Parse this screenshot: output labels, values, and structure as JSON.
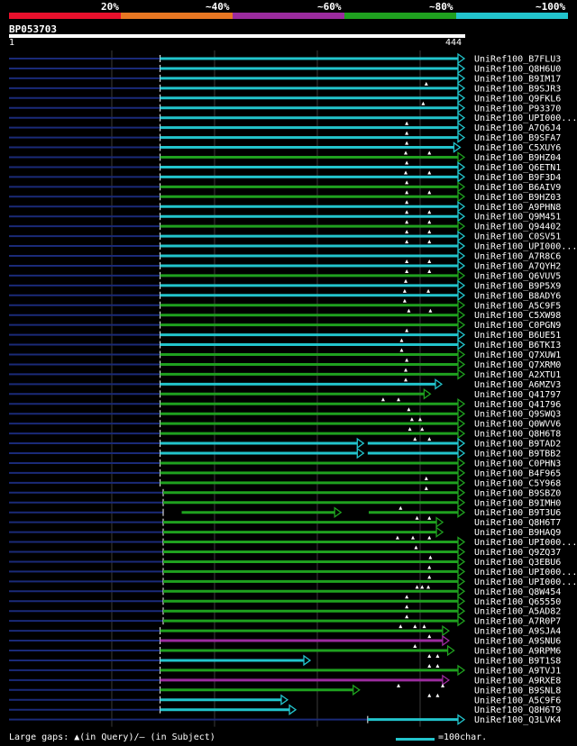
{
  "legend": {
    "labels": [
      "20%",
      "~40%",
      "~60%",
      "~80%",
      "~100%"
    ],
    "colors": [
      "#e8102c",
      "#e87722",
      "#9b2b9e",
      "#1fa01f",
      "#22c4cc"
    ]
  },
  "query": {
    "id": "BP053703",
    "start": "1",
    "end": "444",
    "length": 444
  },
  "hits": [
    {
      "name": "UniRef100_B7FLU3",
      "color": "#22c4cc",
      "start": 148,
      "end": 444,
      "marks": []
    },
    {
      "name": "UniRef100_Q8H6U0",
      "color": "#22c4cc",
      "start": 148,
      "end": 444,
      "marks": []
    },
    {
      "name": "UniRef100_B9IM17",
      "color": "#22c4cc",
      "start": 148,
      "end": 444,
      "marks": [
        407
      ]
    },
    {
      "name": "UniRef100_B9SJR3",
      "color": "#22c4cc",
      "start": 148,
      "end": 444,
      "marks": []
    },
    {
      "name": "UniRef100_Q9FKL6",
      "color": "#22c4cc",
      "start": 148,
      "end": 444,
      "marks": [
        404
      ]
    },
    {
      "name": "UniRef100_P93370",
      "color": "#22c4cc",
      "start": 148,
      "end": 444,
      "marks": []
    },
    {
      "name": "UniRef100_UPI000...",
      "color": "#22c4cc",
      "start": 148,
      "end": 444,
      "marks": [
        388
      ]
    },
    {
      "name": "UniRef100_A7Q6J4",
      "color": "#22c4cc",
      "start": 148,
      "end": 444,
      "marks": [
        388
      ]
    },
    {
      "name": "UniRef100_B9SFA7",
      "color": "#22c4cc",
      "start": 148,
      "end": 444,
      "marks": [
        388
      ]
    },
    {
      "name": "UniRef100_C5XUY6",
      "color": "#22c4cc",
      "start": 148,
      "end": 440,
      "marks": [
        387,
        410
      ]
    },
    {
      "name": "UniRef100_B9HZ04",
      "color": "#1fa01f",
      "start": 148,
      "end": 444,
      "marks": [
        388
      ]
    },
    {
      "name": "UniRef100_Q6ETN1",
      "color": "#22c4cc",
      "start": 148,
      "end": 444,
      "marks": [
        387,
        410
      ]
    },
    {
      "name": "UniRef100_B9F3D4",
      "color": "#22c4cc",
      "start": 148,
      "end": 444,
      "marks": [
        388
      ]
    },
    {
      "name": "UniRef100_B6AIV9",
      "color": "#1fa01f",
      "start": 148,
      "end": 444,
      "marks": [
        388,
        410
      ]
    },
    {
      "name": "UniRef100_B9HZ03",
      "color": "#1fa01f",
      "start": 148,
      "end": 444,
      "marks": [
        388
      ]
    },
    {
      "name": "UniRef100_A9PHN8",
      "color": "#22c4cc",
      "start": 148,
      "end": 444,
      "marks": [
        388,
        410
      ]
    },
    {
      "name": "UniRef100_Q9M451",
      "color": "#22c4cc",
      "start": 148,
      "end": 444,
      "marks": [
        388,
        410
      ]
    },
    {
      "name": "UniRef100_Q94402",
      "color": "#1fa01f",
      "start": 148,
      "end": 444,
      "marks": [
        388,
        410
      ]
    },
    {
      "name": "UniRef100_C0SV51",
      "color": "#22c4cc",
      "start": 148,
      "end": 444,
      "marks": [
        388,
        410
      ]
    },
    {
      "name": "UniRef100_UPI000...",
      "color": "#22c4cc",
      "start": 148,
      "end": 444,
      "marks": []
    },
    {
      "name": "UniRef100_A7R8C6",
      "color": "#22c4cc",
      "start": 148,
      "end": 444,
      "marks": [
        388,
        410
      ]
    },
    {
      "name": "UniRef100_A7QYH2",
      "color": "#22c4cc",
      "start": 148,
      "end": 444,
      "marks": [
        388,
        410
      ]
    },
    {
      "name": "UniRef100_Q6VUV5",
      "color": "#1fa01f",
      "start": 148,
      "end": 444,
      "marks": [
        387
      ]
    },
    {
      "name": "UniRef100_B9P5X9",
      "color": "#22c4cc",
      "start": 148,
      "end": 444,
      "marks": [
        386,
        409
      ]
    },
    {
      "name": "UniRef100_B8ADY6",
      "color": "#22c4cc",
      "start": 148,
      "end": 444,
      "marks": [
        386
      ]
    },
    {
      "name": "UniRef100_A5C9F5",
      "color": "#1fa01f",
      "start": 148,
      "end": 444,
      "marks": [
        390,
        411
      ]
    },
    {
      "name": "UniRef100_C5XW98",
      "color": "#1fa01f",
      "start": 148,
      "end": 444,
      "marks": []
    },
    {
      "name": "UniRef100_C0PGN9",
      "color": "#1fa01f",
      "start": 148,
      "end": 444,
      "marks": [
        388
      ]
    },
    {
      "name": "UniRef100_B6UE51",
      "color": "#22c4cc",
      "start": 148,
      "end": 444,
      "marks": [
        383
      ]
    },
    {
      "name": "UniRef100_B6TKI3",
      "color": "#22c4cc",
      "start": 148,
      "end": 444,
      "marks": [
        383
      ]
    },
    {
      "name": "UniRef100_Q7XUW1",
      "color": "#1fa01f",
      "start": 148,
      "end": 444,
      "marks": [
        388
      ]
    },
    {
      "name": "UniRef100_Q7XRM0",
      "color": "#1fa01f",
      "start": 148,
      "end": 444,
      "marks": [
        387
      ]
    },
    {
      "name": "UniRef100_A2XTU1",
      "color": "#1fa01f",
      "start": 148,
      "end": 444,
      "marks": [
        387
      ]
    },
    {
      "name": "UniRef100_A6MZV3",
      "color": "#22c4cc",
      "start": 148,
      "end": 422,
      "marks": []
    },
    {
      "name": "UniRef100_Q41797",
      "color": "#1fa01f",
      "start": 148,
      "end": 411,
      "marks": [
        365,
        380
      ]
    },
    {
      "name": "UniRef100_Q41796",
      "color": "#1fa01f",
      "start": 148,
      "end": 444,
      "marks": [
        390
      ]
    },
    {
      "name": "UniRef100_Q9SWQ3",
      "color": "#1fa01f",
      "start": 148,
      "end": 444,
      "marks": [
        393,
        401
      ]
    },
    {
      "name": "UniRef100_Q0WVV6",
      "color": "#1fa01f",
      "start": 148,
      "end": 444,
      "marks": [
        391,
        403
      ]
    },
    {
      "name": "UniRef100_Q8H6T8",
      "color": "#1fa01f",
      "start": 148,
      "end": 444,
      "marks": [
        396,
        410
      ]
    },
    {
      "name": "UniRef100_B9TAD2",
      "color": "#22c4cc",
      "start": 148,
      "end": 346,
      "marks": [],
      "gap_start": 346,
      "gap_end": 350,
      "start2": 350,
      "end2": 444
    },
    {
      "name": "UniRef100_B9TBB2",
      "color": "#22c4cc",
      "start": 148,
      "end": 346,
      "marks": [],
      "gap_start": 346,
      "gap_end": 350,
      "start2": 350,
      "end2": 444
    },
    {
      "name": "UniRef100_C0PHN3",
      "color": "#1fa01f",
      "start": 148,
      "end": 444,
      "marks": []
    },
    {
      "name": "UniRef100_B4F965",
      "color": "#1fa01f",
      "start": 148,
      "end": 444,
      "marks": [
        407
      ]
    },
    {
      "name": "UniRef100_C5Y968",
      "color": "#1fa01f",
      "start": 148,
      "end": 444,
      "marks": [
        407
      ]
    },
    {
      "name": "UniRef100_B9SBZ0",
      "color": "#1fa01f",
      "start": 151,
      "end": 444,
      "marks": []
    },
    {
      "name": "UniRef100_B9IMH0",
      "color": "#1fa01f",
      "start": 151,
      "end": 444,
      "marks": [
        382
      ]
    },
    {
      "name": "UniRef100_B9T3U6",
      "color": "#1fa01f",
      "start": 151,
      "end": 444,
      "marks": [
        398,
        410
      ],
      "segments": [
        [
          169,
          324
        ],
        [
          351,
          444
        ]
      ]
    },
    {
      "name": "UniRef100_Q8H6T7",
      "color": "#1fa01f",
      "start": 151,
      "end": 423,
      "marks": []
    },
    {
      "name": "UniRef100_B9HAQ9",
      "color": "#1fa01f",
      "start": 151,
      "end": 423,
      "marks": [
        379,
        394,
        410
      ]
    },
    {
      "name": "UniRef100_UPI000...",
      "color": "#1fa01f",
      "start": 151,
      "end": 444,
      "marks": [
        397
      ]
    },
    {
      "name": "UniRef100_Q9ZQ37",
      "color": "#1fa01f",
      "start": 151,
      "end": 444,
      "marks": [
        411
      ]
    },
    {
      "name": "UniRef100_Q3EBU6",
      "color": "#1fa01f",
      "start": 151,
      "end": 444,
      "marks": [
        410
      ]
    },
    {
      "name": "UniRef100_UPI000...",
      "color": "#1fa01f",
      "start": 151,
      "end": 444,
      "marks": [
        410
      ]
    },
    {
      "name": "UniRef100_UPI000...",
      "color": "#1fa01f",
      "start": 151,
      "end": 444,
      "marks": [
        398,
        403,
        409
      ]
    },
    {
      "name": "UniRef100_Q8W454",
      "color": "#1fa01f",
      "start": 151,
      "end": 444,
      "marks": [
        388
      ]
    },
    {
      "name": "UniRef100_Q65550",
      "color": "#1fa01f",
      "start": 151,
      "end": 444,
      "marks": [
        388
      ]
    },
    {
      "name": "UniRef100_A5AD82",
      "color": "#1fa01f",
      "start": 151,
      "end": 444,
      "marks": [
        388
      ]
    },
    {
      "name": "UniRef100_A7R0P7",
      "color": "#1fa01f",
      "start": 151,
      "end": 444,
      "marks": [
        382,
        396,
        405
      ]
    },
    {
      "name": "UniRef100_A9SJA4",
      "color": "#1fa01f",
      "start": 148,
      "end": 429,
      "marks": [
        410
      ]
    },
    {
      "name": "UniRef100_A9SNU6",
      "color": "#9b2b9e",
      "start": 148,
      "end": 429,
      "marks": [
        396
      ]
    },
    {
      "name": "UniRef100_A9RPM6",
      "color": "#1fa01f",
      "start": 148,
      "end": 434,
      "marks": [
        410,
        418
      ]
    },
    {
      "name": "UniRef100_B9T1S8",
      "color": "#22c4cc",
      "start": 148,
      "end": 294,
      "marks": [
        410,
        418
      ]
    },
    {
      "name": "UniRef100_A9TVJ1",
      "color": "#1fa01f",
      "start": 148,
      "end": 444,
      "marks": []
    },
    {
      "name": "UniRef100_A9RXE8",
      "color": "#9b2b9e",
      "start": 148,
      "end": 429,
      "marks": [
        380,
        423
      ]
    },
    {
      "name": "UniRef100_B9SNL8",
      "color": "#1fa01f",
      "start": 148,
      "end": 342,
      "marks": [
        410,
        418
      ]
    },
    {
      "name": "UniRef100_A5C9F6",
      "color": "#22c4cc",
      "start": 148,
      "end": 272,
      "marks": []
    },
    {
      "name": "UniRef100_Q8H6T9",
      "color": "#22c4cc",
      "start": 148,
      "end": 280,
      "marks": []
    },
    {
      "name": "UniRef100_Q3LVK4",
      "color": "#22c4cc",
      "start": 350,
      "end": 444,
      "marks": []
    }
  ],
  "footer": {
    "gaps_text": "Large gaps: ▲(in Query)/— (in Subject)",
    "scale_text": "=100char."
  }
}
